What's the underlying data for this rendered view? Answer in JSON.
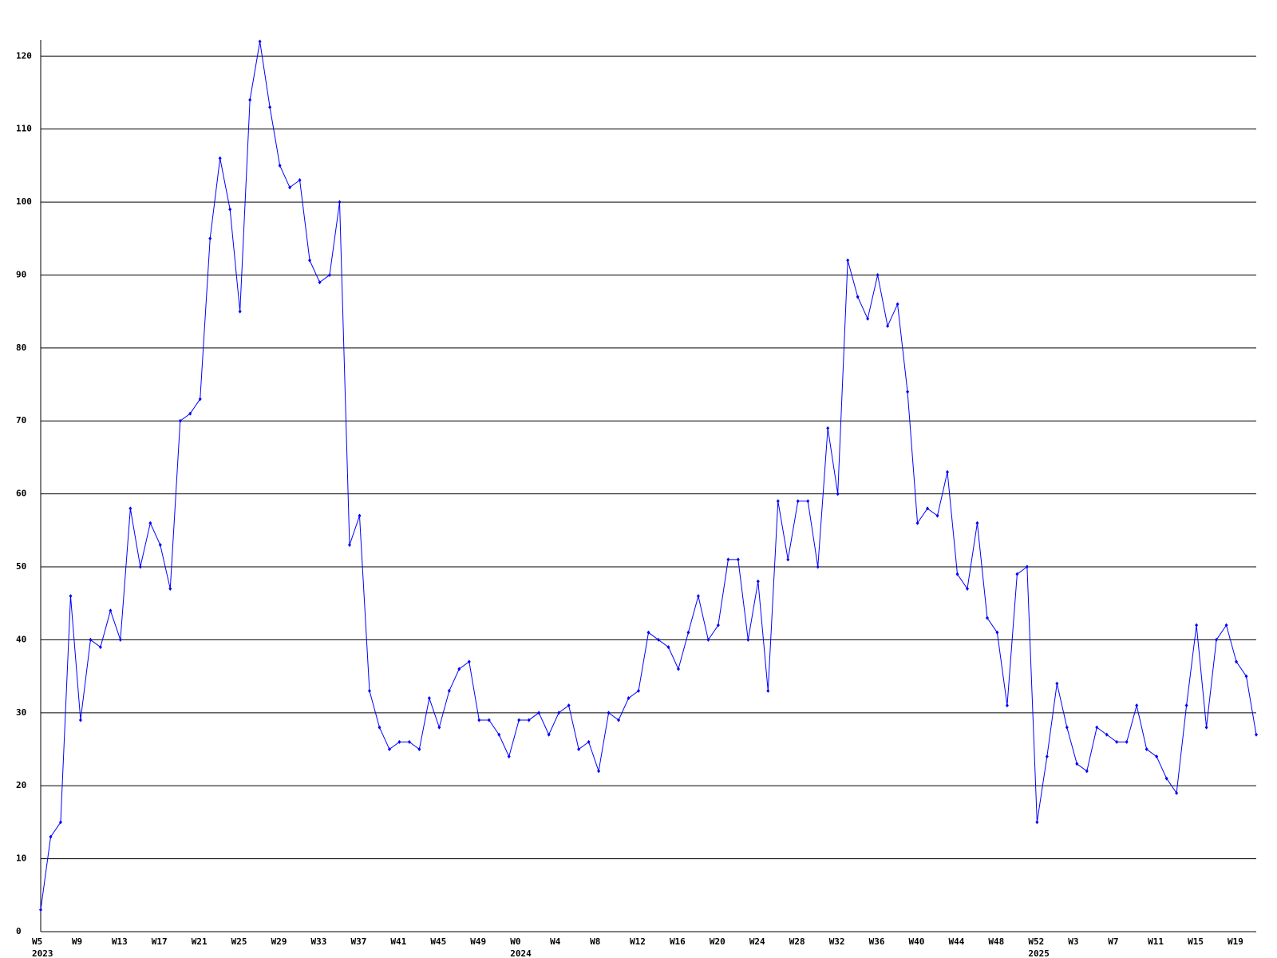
{
  "chart_data": {
    "type": "line",
    "categories": [
      "W5\n2023",
      null,
      null,
      null,
      "W9",
      null,
      null,
      null,
      "W13",
      null,
      null,
      null,
      "W17",
      null,
      null,
      null,
      "W21",
      null,
      null,
      null,
      "W25",
      null,
      null,
      null,
      "W29",
      null,
      null,
      null,
      "W33",
      null,
      null,
      null,
      "W37",
      null,
      null,
      null,
      "W41",
      null,
      null,
      null,
      "W45",
      null,
      null,
      null,
      "W49",
      null,
      null,
      null,
      "W0\n2024",
      null,
      null,
      null,
      "W4",
      null,
      null,
      null,
      "W8",
      null,
      null,
      null,
      "W12",
      null,
      null,
      null,
      "W16",
      null,
      null,
      null,
      "W20",
      null,
      null,
      null,
      "W24",
      null,
      null,
      null,
      "W28",
      null,
      null,
      null,
      "W32",
      null,
      null,
      null,
      "W36",
      null,
      null,
      null,
      "W40",
      null,
      null,
      null,
      "W44",
      null,
      null,
      null,
      "W48",
      null,
      null,
      null,
      "W52\n2025",
      null,
      null,
      null,
      "W3",
      null,
      null,
      null,
      "W7",
      null,
      null,
      null,
      "W11",
      null,
      null,
      null,
      "W15",
      null,
      null,
      null,
      "W19",
      null,
      null
    ],
    "series": [
      {
        "color": "#0000ff",
        "values": [
          3,
          13,
          15,
          46,
          29,
          40,
          39,
          44,
          40,
          58,
          50,
          56,
          53,
          47,
          70,
          71,
          73,
          95,
          106,
          99,
          85,
          114,
          122,
          113,
          105,
          102,
          103,
          92,
          89,
          90,
          100,
          53,
          57,
          33,
          28,
          25,
          26,
          26,
          25,
          32,
          28,
          33,
          36,
          37,
          29,
          29,
          27,
          24,
          29,
          29,
          30,
          27,
          30,
          31,
          25,
          26,
          22,
          30,
          29,
          32,
          33,
          41,
          40,
          39,
          36,
          41,
          46,
          40,
          42,
          51,
          51,
          40,
          48,
          33,
          59,
          51,
          59,
          59,
          50,
          69,
          60,
          92,
          87,
          84,
          90,
          83,
          86,
          74,
          56,
          58,
          57,
          63,
          49,
          47,
          56,
          43,
          41,
          31,
          49,
          50,
          15,
          24,
          34,
          28,
          23,
          22,
          28,
          27,
          26,
          26,
          31,
          25,
          24,
          21,
          19,
          31,
          42,
          28,
          40,
          42,
          37,
          35,
          27
        ]
      }
    ],
    "ylim": [
      0,
      122
    ],
    "yticks": [
      0,
      10,
      20,
      30,
      40,
      50,
      60,
      70,
      80,
      90,
      100,
      110,
      120
    ],
    "grid": true
  }
}
